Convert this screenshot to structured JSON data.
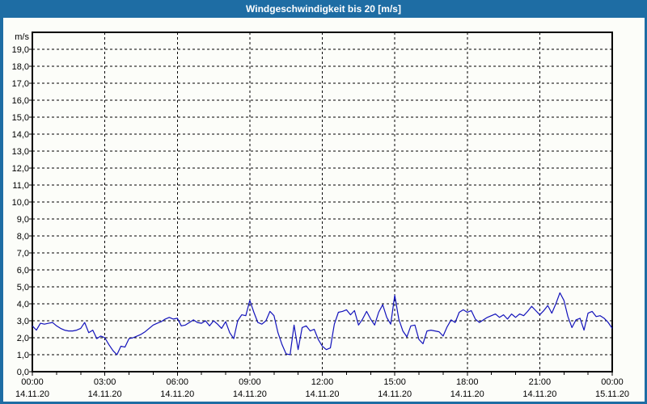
{
  "window": {
    "title": "Windgeschwindigkeit bis 20 [m/s]"
  },
  "colors": {
    "titlebar_bg": "#1e6da4",
    "window_border": "#1e6da4",
    "content_bg": "#fcfdf9",
    "title_text": "#ffffff",
    "grid": "#000000",
    "axis": "#000000",
    "label": "#000000",
    "line": "#1212bb"
  },
  "chart_data": {
    "type": "line",
    "title": "Windgeschwindigkeit bis 20 [m/s]",
    "ylabel": "m/s",
    "ylim": [
      0,
      20
    ],
    "ytick_step": 1.0,
    "yticks": [
      "0,0",
      "1,0",
      "2,0",
      "3,0",
      "4,0",
      "5,0",
      "6,0",
      "7,0",
      "8,0",
      "9,0",
      "10,0",
      "11,0",
      "12,0",
      "13,0",
      "14,0",
      "15,0",
      "16,0",
      "17,0",
      "18,0",
      "19,0"
    ],
    "grid": "dashed",
    "legend": "none",
    "x_ticks": [
      {
        "hour": 0,
        "time": "00:00",
        "date": "14.11.20"
      },
      {
        "hour": 3,
        "time": "03:00",
        "date": "14.11.20"
      },
      {
        "hour": 6,
        "time": "06:00",
        "date": "14.11.20"
      },
      {
        "hour": 9,
        "time": "09:00",
        "date": "14.11.20"
      },
      {
        "hour": 12,
        "time": "12:00",
        "date": "14.11.20"
      },
      {
        "hour": 15,
        "time": "15:00",
        "date": "14.11.20"
      },
      {
        "hour": 18,
        "time": "18:00",
        "date": "14.11.20"
      },
      {
        "hour": 21,
        "time": "21:00",
        "date": "14.11.20"
      },
      {
        "hour": 24,
        "time": "00:00",
        "date": "15.11.20"
      }
    ],
    "vgrid_hours": [
      3,
      6,
      9,
      12,
      15,
      18,
      21
    ],
    "minor_tick_hours": 1,
    "x_range_hours": [
      0,
      24
    ],
    "interval_minutes": 10,
    "series_name": "Windgeschwindigkeit",
    "values": [
      2.7,
      2.45,
      2.85,
      2.8,
      2.85,
      2.9,
      2.7,
      2.55,
      2.45,
      2.4,
      2.4,
      2.45,
      2.55,
      2.9,
      2.3,
      2.45,
      1.95,
      2.1,
      2.0,
      1.6,
      1.25,
      1.0,
      1.5,
      1.45,
      1.95,
      2.0,
      2.1,
      2.2,
      2.35,
      2.55,
      2.75,
      2.85,
      2.95,
      3.1,
      3.2,
      3.1,
      3.15,
      2.7,
      2.75,
      2.9,
      3.05,
      2.9,
      2.85,
      3.0,
      2.7,
      3.0,
      2.8,
      2.55,
      2.95,
      2.3,
      1.95,
      3.0,
      3.35,
      3.3,
      4.2,
      3.5,
      2.9,
      2.8,
      3.0,
      3.55,
      3.3,
      2.3,
      1.6,
      1.05,
      1.0,
      2.75,
      1.3,
      2.6,
      2.7,
      2.4,
      2.5,
      1.9,
      1.5,
      1.3,
      1.4,
      2.8,
      3.5,
      3.55,
      3.65,
      3.35,
      3.6,
      2.75,
      3.1,
      3.55,
      3.1,
      2.75,
      3.5,
      3.95,
      3.2,
      2.8,
      4.5,
      3.1,
      2.4,
      2.05,
      2.7,
      2.75,
      1.9,
      1.65,
      2.4,
      2.45,
      2.4,
      2.35,
      2.1,
      2.65,
      3.05,
      2.9,
      3.5,
      3.65,
      3.5,
      3.6,
      3.1,
      2.9,
      3.05,
      3.2,
      3.3,
      3.4,
      3.2,
      3.35,
      3.1,
      3.4,
      3.2,
      3.4,
      3.3,
      3.55,
      3.85,
      3.6,
      3.35,
      3.6,
      3.9,
      3.45,
      4.0,
      4.65,
      4.2,
      3.25,
      2.6,
      3.05,
      3.15,
      2.45,
      3.45,
      3.55,
      3.25,
      3.3,
      3.15,
      2.9,
      2.55
    ]
  }
}
